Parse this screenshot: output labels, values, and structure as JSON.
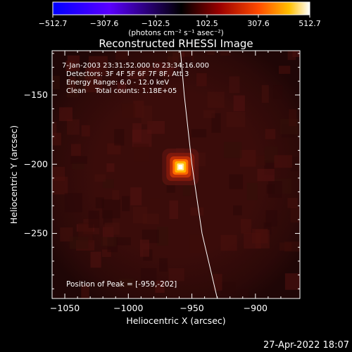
{
  "colorbar": {
    "tick_labels": [
      "−512.7",
      "−307.6",
      "−102.5",
      "102.5",
      "307.6",
      "512.7"
    ],
    "units": "(photons cm⁻² s⁻¹ asec⁻²)",
    "range": [
      -512.7,
      512.7
    ],
    "colormap": [
      "#0000ff",
      "#6a00ff",
      "#000000",
      "#8b0000",
      "#ff4500",
      "#ffb000",
      "#ffffff"
    ]
  },
  "chart_data": {
    "type": "heatmap",
    "title": "Reconstructed RHESSI Image",
    "xlabel": "Heliocentric X (arcsec)",
    "ylabel": "Heliocentric Y (arcsec)",
    "xlim": [
      -1060,
      -865
    ],
    "ylim": [
      -297,
      -118
    ],
    "xticks": [
      -1050,
      -1000,
      -950,
      -900
    ],
    "yticks": [
      -150,
      -200,
      -250
    ],
    "xtick_labels": [
      "−1050",
      "−1000",
      "−950",
      "−900"
    ],
    "ytick_labels": [
      "−150",
      "−200",
      "−250"
    ],
    "peak": {
      "x": -959,
      "y": -202,
      "value": 512.7
    },
    "annotations": {
      "time": "7-Jan-2003 23:31:52.000 to 23:34:16.000",
      "detectors": "Detectors: 3F 4F 5F 6F 7F 8F, Att 3",
      "energy": "Energy Range: 6.0 - 12.0 keV",
      "clean": "Clean    Total counts: 1.18E+05",
      "peak_text": "Position of Peak = [-959,-202]"
    },
    "limb": [
      {
        "x": -959,
        "y": -118
      },
      {
        "x": -956,
        "y": -150
      },
      {
        "x": -950,
        "y": -200
      },
      {
        "x": -942,
        "y": -250
      },
      {
        "x": -930,
        "y": -297
      }
    ]
  },
  "footer": {
    "date": "27-Apr-2022 18:07"
  }
}
